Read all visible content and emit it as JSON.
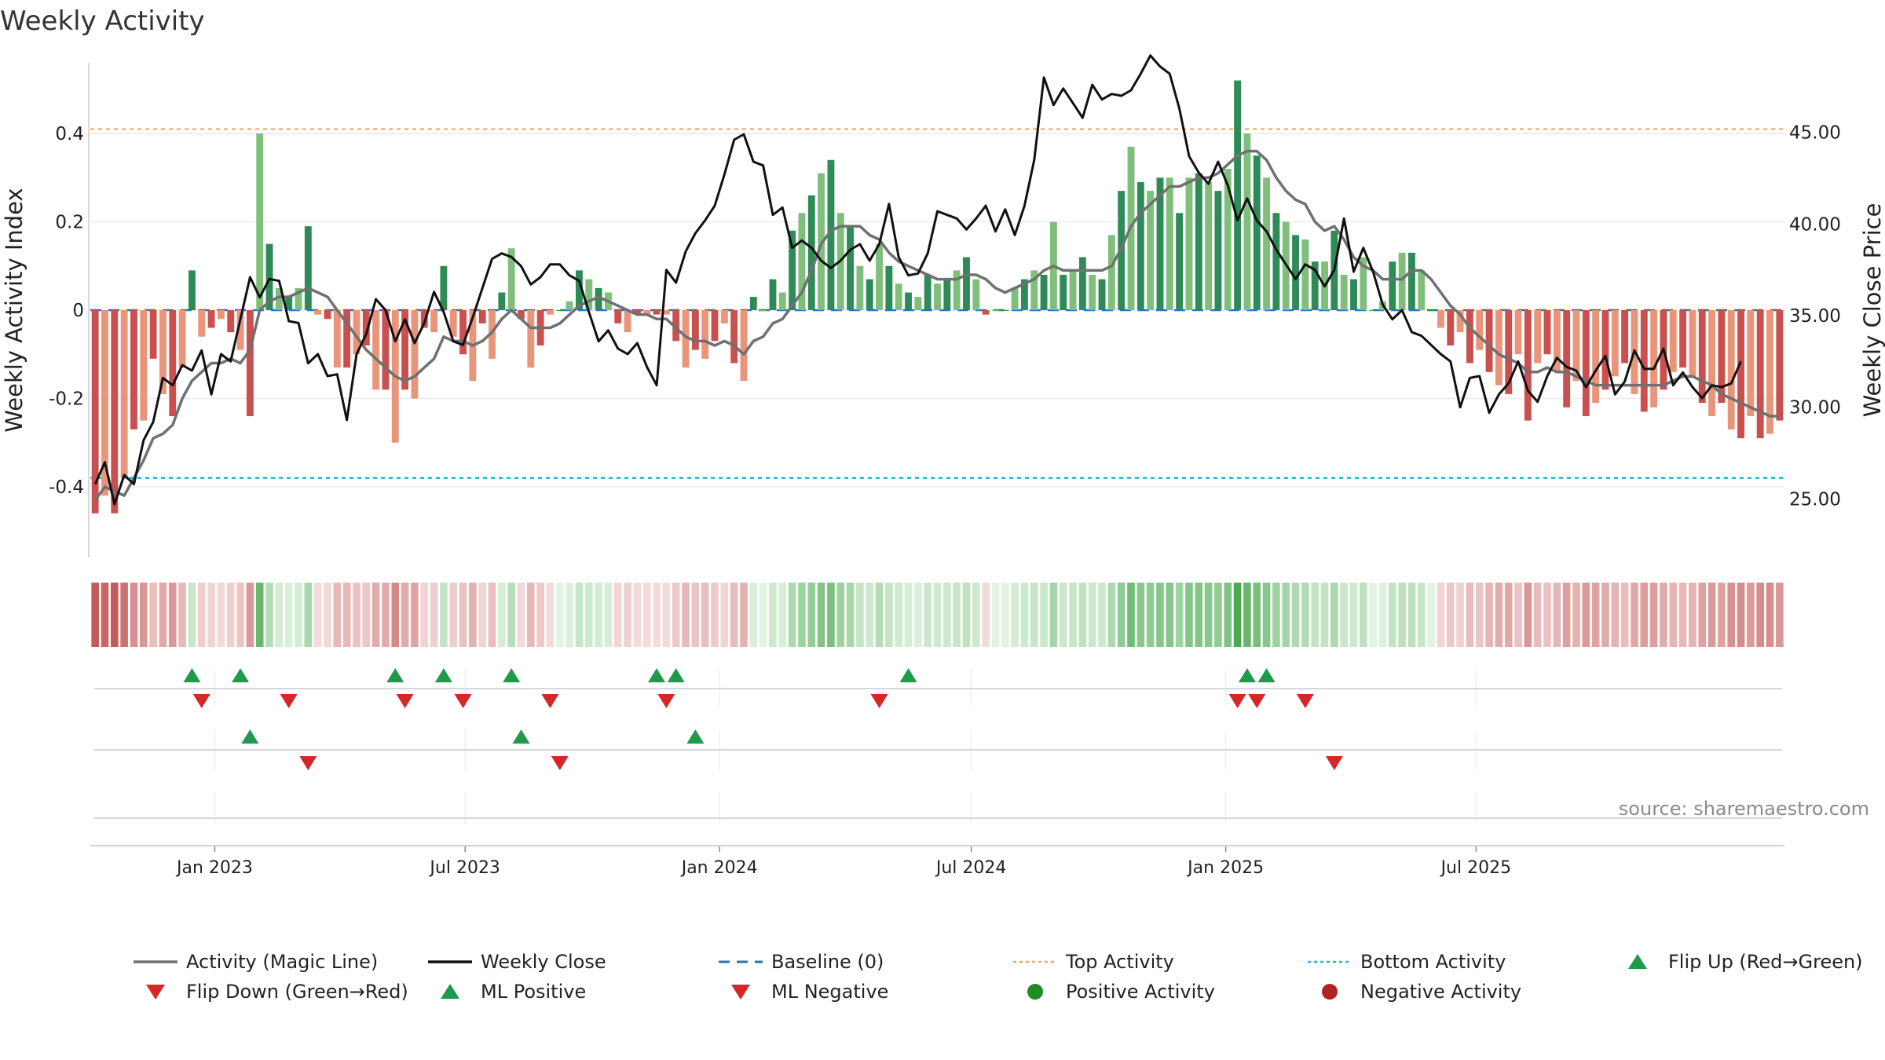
{
  "chart_data": {
    "type": "bar",
    "title": "Weekly Activity",
    "ylabel_left": "Weekly Activity Index",
    "ylabel_right": "Weekly Close Price",
    "ylim_left": [
      -0.56,
      0.56
    ],
    "ylim_right": [
      21.8,
      48.8
    ],
    "yticks_left": [
      "0.4",
      "0.2",
      "0",
      "-0.2",
      "-0.4"
    ],
    "yticks_right": [
      "45.00",
      "40.00",
      "35.00",
      "30.00",
      "25.00"
    ],
    "x_tick_labels": [
      "Jan 2023",
      "Jul 2023",
      "Jan 2024",
      "Jul 2024",
      "Jan 2025",
      "Jul 2025"
    ],
    "x_range_weeks": [
      "2022-10-03",
      "2025-09-29"
    ],
    "top_activity": 0.41,
    "bottom_activity": -0.38,
    "baseline": 0,
    "source_text": "source: sharemaestro.com",
    "colors": {
      "pos_dark": "#2e8b57",
      "pos_light": "#7fbf7b",
      "neg_dark": "#c9504f",
      "neg_light": "#e8957a",
      "close": "#111111",
      "magic": "#707070",
      "baseline": "#1f77b4",
      "top": "#f4a460",
      "bottom": "#17becf",
      "marker_up": "#1e9a4a",
      "marker_down": "#d62728",
      "pos_dot": "#228b22",
      "neg_dot": "#b22222"
    },
    "series": [
      {
        "name": "Weekly Activity Index",
        "kind": "bar",
        "values": [
          -0.46,
          -0.42,
          -0.46,
          -0.38,
          -0.27,
          -0.25,
          -0.11,
          -0.19,
          -0.24,
          -0.13,
          0.09,
          -0.06,
          -0.04,
          -0.02,
          -0.05,
          -0.09,
          -0.24,
          0.4,
          0.15,
          0.05,
          0.03,
          0.05,
          0.19,
          -0.01,
          -0.02,
          -0.13,
          -0.13,
          -0.1,
          -0.08,
          -0.18,
          -0.18,
          -0.3,
          -0.18,
          -0.2,
          -0.04,
          -0.05,
          0.1,
          -0.06,
          -0.1,
          -0.16,
          -0.03,
          -0.11,
          0.04,
          0.14,
          -0.02,
          -0.13,
          -0.08,
          -0.01,
          0.0,
          0.02,
          0.09,
          0.07,
          0.05,
          0.04,
          -0.03,
          -0.05,
          -0.01,
          -0.01,
          -0.01,
          -0.01,
          -0.07,
          -0.13,
          -0.09,
          -0.11,
          -0.07,
          -0.03,
          -0.12,
          -0.16,
          0.03,
          0.0,
          0.07,
          0.04,
          0.18,
          0.22,
          0.26,
          0.31,
          0.34,
          0.22,
          0.19,
          0.1,
          0.07,
          0.15,
          0.1,
          0.06,
          0.04,
          0.03,
          0.08,
          0.06,
          0.07,
          0.09,
          0.12,
          0.07,
          -0.01,
          0.0,
          0.0,
          0.05,
          0.07,
          0.09,
          0.08,
          0.2,
          0.08,
          0.09,
          0.12,
          0.08,
          0.07,
          0.17,
          0.27,
          0.37,
          0.29,
          0.27,
          0.3,
          0.3,
          0.22,
          0.3,
          0.31,
          0.29,
          0.27,
          0.32,
          0.52,
          0.4,
          0.35,
          0.3,
          0.22,
          0.2,
          0.17,
          0.16,
          0.11,
          0.11,
          0.18,
          0.08,
          0.07,
          0.12,
          0.0,
          0.02,
          0.11,
          0.13,
          0.13,
          0.09,
          0.0,
          -0.04,
          -0.08,
          -0.05,
          -0.12,
          -0.09,
          -0.14,
          -0.17,
          -0.19,
          -0.1,
          -0.25,
          -0.12,
          -0.1,
          -0.14,
          -0.22,
          -0.16,
          -0.24,
          -0.21,
          -0.18,
          -0.15,
          -0.12,
          -0.19,
          -0.23,
          -0.22,
          -0.18,
          -0.14,
          -0.13,
          -0.15,
          -0.21,
          -0.24,
          -0.21,
          -0.27,
          -0.29,
          -0.24,
          -0.29,
          -0.28,
          -0.25
        ]
      },
      {
        "name": "Weekly Close",
        "kind": "line",
        "values": [
          25.8,
          27.0,
          24.7,
          26.3,
          25.8,
          28.2,
          29.2,
          31.6,
          31.2,
          32.3,
          32.0,
          33.1,
          30.7,
          32.9,
          32.5,
          34.8,
          37.1,
          36.0,
          37.0,
          36.9,
          34.7,
          34.6,
          32.4,
          32.9,
          31.7,
          31.8,
          29.3,
          32.9,
          34.0,
          35.9,
          35.3,
          33.6,
          34.8,
          33.5,
          34.6,
          36.3,
          35.2,
          33.6,
          33.4,
          34.9,
          36.5,
          38.1,
          38.4,
          38.2,
          37.7,
          36.7,
          37.1,
          37.8,
          37.8,
          37.2,
          36.9,
          35.2,
          33.6,
          34.2,
          33.2,
          32.9,
          33.5,
          32.2,
          31.2,
          37.5,
          36.8,
          38.5,
          39.5,
          40.2,
          41.0,
          42.7,
          44.6,
          44.9,
          43.4,
          43.2,
          40.5,
          40.9,
          38.7,
          39.1,
          38.7,
          38.0,
          37.6,
          38.0,
          38.6,
          38.9,
          38.0,
          38.9,
          41.1,
          38.2,
          37.2,
          37.3,
          38.4,
          40.7,
          40.5,
          40.3,
          39.7,
          40.3,
          41.0,
          39.6,
          40.8,
          39.4,
          41.0,
          43.5,
          48.0,
          46.5,
          47.4,
          46.6,
          45.8,
          47.6,
          46.8,
          47.1,
          47.0,
          47.3,
          48.2,
          49.2,
          48.6,
          48.2,
          46.3,
          43.7,
          42.8,
          42.2,
          43.4,
          42.1,
          40.2,
          41.4,
          40.2,
          39.6,
          38.6,
          37.8,
          37.0,
          37.8,
          37.5,
          36.6,
          37.5,
          40.3,
          37.4,
          38.7,
          37.4,
          35.6,
          34.8,
          35.3,
          34.1,
          33.9,
          33.4,
          32.9,
          32.5,
          30.0,
          31.6,
          31.7,
          29.7,
          30.7,
          31.3,
          32.5,
          30.9,
          30.3,
          31.7,
          32.7,
          32.2,
          32.0,
          31.1,
          32.0,
          32.8,
          30.7,
          31.4,
          33.1,
          32.1,
          32.1,
          33.2,
          31.2,
          31.9,
          31.1,
          30.5,
          31.2,
          31.1,
          31.3,
          32.5
        ]
      },
      {
        "name": "Activity (Magic Line)",
        "kind": "line",
        "values": [
          -0.43,
          -0.4,
          -0.41,
          -0.42,
          -0.38,
          -0.34,
          -0.29,
          -0.28,
          -0.26,
          -0.2,
          -0.16,
          -0.14,
          -0.12,
          -0.12,
          -0.11,
          -0.12,
          -0.09,
          0.0,
          0.02,
          0.03,
          0.03,
          0.04,
          0.05,
          0.04,
          0.03,
          0.0,
          -0.03,
          -0.06,
          -0.09,
          -0.11,
          -0.13,
          -0.15,
          -0.16,
          -0.15,
          -0.13,
          -0.11,
          -0.06,
          -0.07,
          -0.07,
          -0.08,
          -0.07,
          -0.05,
          -0.02,
          0.0,
          -0.02,
          -0.04,
          -0.04,
          -0.04,
          -0.03,
          -0.01,
          0.01,
          0.02,
          0.03,
          0.02,
          0.01,
          0.0,
          -0.01,
          -0.01,
          -0.02,
          -0.02,
          -0.04,
          -0.06,
          -0.07,
          -0.07,
          -0.08,
          -0.07,
          -0.08,
          -0.1,
          -0.07,
          -0.06,
          -0.03,
          -0.02,
          0.01,
          0.04,
          0.09,
          0.15,
          0.18,
          0.19,
          0.19,
          0.19,
          0.17,
          0.16,
          0.13,
          0.11,
          0.1,
          0.09,
          0.08,
          0.07,
          0.07,
          0.07,
          0.08,
          0.08,
          0.07,
          0.05,
          0.04,
          0.05,
          0.06,
          0.07,
          0.09,
          0.1,
          0.09,
          0.09,
          0.09,
          0.09,
          0.09,
          0.1,
          0.14,
          0.19,
          0.22,
          0.24,
          0.26,
          0.28,
          0.28,
          0.29,
          0.3,
          0.3,
          0.31,
          0.33,
          0.35,
          0.36,
          0.36,
          0.34,
          0.3,
          0.27,
          0.25,
          0.24,
          0.2,
          0.18,
          0.19,
          0.16,
          0.12,
          0.1,
          0.09,
          0.07,
          0.07,
          0.07,
          0.09,
          0.09,
          0.07,
          0.04,
          0.01,
          -0.01,
          -0.04,
          -0.06,
          -0.08,
          -0.1,
          -0.11,
          -0.12,
          -0.14,
          -0.14,
          -0.13,
          -0.14,
          -0.14,
          -0.15,
          -0.16,
          -0.17,
          -0.17,
          -0.17,
          -0.17,
          -0.17,
          -0.17,
          -0.17,
          -0.17,
          -0.16,
          -0.15,
          -0.15,
          -0.16,
          -0.17,
          -0.19,
          -0.2,
          -0.21,
          -0.22,
          -0.23,
          -0.24,
          -0.24
        ]
      }
    ],
    "signal_rows": [
      {
        "name": "Flip Up / Flip Down",
        "up_weeks": [
          10,
          15,
          31,
          36,
          43,
          58,
          60,
          84,
          119,
          121
        ],
        "down_weeks": [
          11,
          20,
          32,
          38,
          47,
          59,
          81,
          118,
          120,
          125
        ]
      },
      {
        "name": "ML Positive / ML Negative",
        "up_weeks": [
          16,
          44,
          62
        ],
        "down_weeks": [
          22,
          48,
          128
        ]
      },
      {
        "name": "Positive / Negative Activity",
        "up_weeks": [],
        "down_weeks": []
      }
    ],
    "legend": [
      {
        "label": "Activity (Magic Line)",
        "marker": "line",
        "color": "#707070"
      },
      {
        "label": "Weekly Close",
        "marker": "line",
        "color": "#111111"
      },
      {
        "label": "Baseline (0)",
        "marker": "dashed",
        "color": "#1f77b4"
      },
      {
        "label": "Top Activity",
        "marker": "dotted",
        "color": "#f4a460"
      },
      {
        "label": "Bottom Activity",
        "marker": "dotted",
        "color": "#17becf"
      },
      {
        "label": "Flip Up (Red→Green)",
        "marker": "triangle-up",
        "color": "#1e9a4a"
      },
      {
        "label": "Flip Down (Green→Red)",
        "marker": "triangle-down",
        "color": "#d62728"
      },
      {
        "label": "ML Positive",
        "marker": "triangle-up",
        "color": "#1e9a4a"
      },
      {
        "label": "ML Negative",
        "marker": "triangle-down",
        "color": "#d62728"
      },
      {
        "label": "Positive Activity",
        "marker": "circle",
        "color": "#228b22"
      },
      {
        "label": "Negative Activity",
        "marker": "circle",
        "color": "#b22222"
      }
    ]
  }
}
